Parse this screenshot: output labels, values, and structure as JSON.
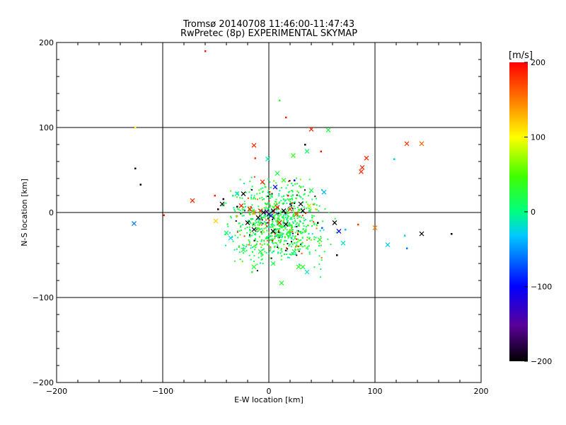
{
  "chart_data": {
    "type": "scatter",
    "title": "Tromsø 20140708 11:46:00-11:47:43",
    "subtitle": "RwPretec (8p) EXPERIMENTAL SKYMAP",
    "xlabel": "E-W location [km]",
    "ylabel": "N-S location [km]",
    "xlim": [
      -200,
      200
    ],
    "ylim": [
      -200,
      200
    ],
    "x_ticks": [
      "-200",
      "-100",
      "0",
      "100",
      "200"
    ],
    "y_ticks": [
      "-200",
      "-100",
      "0",
      "100",
      "200"
    ],
    "grid": true,
    "colorbar": {
      "label": "[m/s]",
      "range": [
        -200,
        200
      ],
      "ticks": [
        "-200",
        "-100",
        "0",
        "100",
        "200"
      ],
      "scale": "black-purple-blue-cyan-green-yellow-orange-red"
    },
    "points": [
      {
        "x": -60,
        "y": 190,
        "v": 190,
        "m": "dot"
      },
      {
        "x": 10,
        "y": 132,
        "v": 30,
        "m": "dot"
      },
      {
        "x": 16,
        "y": 112,
        "v": 190,
        "m": "dot"
      },
      {
        "x": -126,
        "y": 100,
        "v": 100,
        "m": "dot"
      },
      {
        "x": 40,
        "y": 98,
        "v": 185,
        "m": "cross"
      },
      {
        "x": 56,
        "y": 97,
        "v": 20,
        "m": "cross"
      },
      {
        "x": 34,
        "y": 80,
        "v": -200,
        "m": "dot"
      },
      {
        "x": -14,
        "y": 79,
        "v": 185,
        "m": "cross"
      },
      {
        "x": 130,
        "y": 81,
        "v": 180,
        "m": "cross"
      },
      {
        "x": 144,
        "y": 81,
        "v": 160,
        "m": "cross"
      },
      {
        "x": 36,
        "y": 72,
        "v": 10,
        "m": "cross"
      },
      {
        "x": 49,
        "y": 72,
        "v": 190,
        "m": "dot"
      },
      {
        "x": 23,
        "y": 67,
        "v": 40,
        "m": "cross"
      },
      {
        "x": 92,
        "y": 64,
        "v": 185,
        "m": "cross"
      },
      {
        "x": -1,
        "y": 63,
        "v": -10,
        "m": "cross"
      },
      {
        "x": -13,
        "y": 64,
        "v": 180,
        "m": "dot"
      },
      {
        "x": 118,
        "y": 63,
        "v": -30,
        "m": "dot"
      },
      {
        "x": 88,
        "y": 53,
        "v": 185,
        "m": "cross"
      },
      {
        "x": 87,
        "y": 48,
        "v": 185,
        "m": "cross"
      },
      {
        "x": -126,
        "y": 52,
        "v": -200,
        "m": "dot"
      },
      {
        "x": -121,
        "y": 33,
        "v": -200,
        "m": "dot"
      },
      {
        "x": -72,
        "y": 14,
        "v": 185,
        "m": "cross"
      },
      {
        "x": -51,
        "y": 20,
        "v": 185,
        "m": "dot"
      },
      {
        "x": -43,
        "y": 16,
        "v": -200,
        "m": "dot"
      },
      {
        "x": -44,
        "y": 10,
        "v": -200,
        "m": "cross"
      },
      {
        "x": -48,
        "y": 4,
        "v": -200,
        "m": "dot"
      },
      {
        "x": -30,
        "y": 7,
        "v": -200,
        "m": "dot"
      },
      {
        "x": -26,
        "y": 8,
        "v": 190,
        "m": "cross"
      },
      {
        "x": -18,
        "y": 4,
        "v": 185,
        "m": "cross"
      },
      {
        "x": -8,
        "y": 2,
        "v": 185,
        "m": "cross"
      },
      {
        "x": -5,
        "y": 0,
        "v": -180,
        "m": "cross"
      },
      {
        "x": -2,
        "y": 1,
        "v": -150,
        "m": "cross"
      },
      {
        "x": 0,
        "y": -2,
        "v": -170,
        "m": "cross"
      },
      {
        "x": 2,
        "y": -4,
        "v": -120,
        "m": "cross"
      },
      {
        "x": 4,
        "y": 2,
        "v": -190,
        "m": "cross"
      },
      {
        "x": -10,
        "y": -6,
        "v": -200,
        "m": "cross"
      },
      {
        "x": -14,
        "y": 0,
        "v": 150,
        "m": "cross"
      },
      {
        "x": 8,
        "y": 6,
        "v": 190,
        "m": "cross"
      },
      {
        "x": 14,
        "y": 2,
        "v": -200,
        "m": "cross"
      },
      {
        "x": 20,
        "y": 4,
        "v": 185,
        "m": "cross"
      },
      {
        "x": 26,
        "y": -2,
        "v": 170,
        "m": "cross"
      },
      {
        "x": 30,
        "y": 10,
        "v": -200,
        "m": "cross"
      },
      {
        "x": 32,
        "y": 2,
        "v": -200,
        "m": "cross"
      },
      {
        "x": -20,
        "y": -12,
        "v": -200,
        "m": "cross"
      },
      {
        "x": -14,
        "y": -20,
        "v": -200,
        "m": "cross"
      },
      {
        "x": 16,
        "y": -14,
        "v": -200,
        "m": "cross"
      },
      {
        "x": 10,
        "y": -12,
        "v": 185,
        "m": "cross"
      },
      {
        "x": 4,
        "y": -22,
        "v": -200,
        "m": "cross"
      },
      {
        "x": 46,
        "y": -12,
        "v": -200,
        "m": "dot"
      },
      {
        "x": 62,
        "y": -12,
        "v": -200,
        "m": "cross"
      },
      {
        "x": 66,
        "y": -22,
        "v": -100,
        "m": "cross"
      },
      {
        "x": 72,
        "y": -20,
        "v": -40,
        "m": "dot"
      },
      {
        "x": 84,
        "y": -14,
        "v": 180,
        "m": "dot"
      },
      {
        "x": 100,
        "y": -18,
        "v": 150,
        "m": "cross"
      },
      {
        "x": 144,
        "y": -25,
        "v": -200,
        "m": "cross"
      },
      {
        "x": 172,
        "y": -25,
        "v": -200,
        "m": "dot"
      },
      {
        "x": 128,
        "y": -27,
        "v": -30,
        "m": "dot"
      },
      {
        "x": 112,
        "y": -38,
        "v": -30,
        "m": "cross"
      },
      {
        "x": 130,
        "y": -42,
        "v": -60,
        "m": "dot"
      },
      {
        "x": -127,
        "y": -13,
        "v": -60,
        "m": "cross"
      },
      {
        "x": -99,
        "y": -3,
        "v": 190,
        "m": "dot"
      },
      {
        "x": 64,
        "y": -50,
        "v": -200,
        "m": "dot"
      },
      {
        "x": 70,
        "y": -36,
        "v": -20,
        "m": "cross"
      },
      {
        "x": 32,
        "y": -64,
        "v": 30,
        "m": "cross"
      },
      {
        "x": 12,
        "y": -83,
        "v": 30,
        "m": "cross"
      },
      {
        "x": -14,
        "y": -64,
        "v": 30,
        "m": "cross"
      },
      {
        "x": 28,
        "y": -64,
        "v": 40,
        "m": "cross"
      },
      {
        "x": 36,
        "y": -70,
        "v": -20,
        "m": "cross"
      },
      {
        "x": -16,
        "y": -70,
        "v": 30,
        "m": "dot"
      },
      {
        "x": 50,
        "y": -18,
        "v": -70,
        "m": "dot"
      },
      {
        "x": -50,
        "y": -10,
        "v": 120,
        "m": "cross"
      },
      {
        "x": -30,
        "y": -4,
        "v": 130,
        "m": "dot"
      },
      {
        "x": 18,
        "y": 20,
        "v": 190,
        "m": "dot"
      },
      {
        "x": 6,
        "y": 30,
        "v": -110,
        "m": "cross"
      },
      {
        "x": 24,
        "y": 38,
        "v": -110,
        "m": "dot"
      },
      {
        "x": 38,
        "y": 8,
        "v": 80,
        "m": "cross"
      },
      {
        "x": 44,
        "y": 4,
        "v": 120,
        "m": "dot"
      },
      {
        "x": 20,
        "y": 10,
        "v": -140,
        "m": "dot"
      },
      {
        "x": -6,
        "y": 36,
        "v": 185,
        "m": "cross"
      },
      {
        "x": -24,
        "y": 22,
        "v": -200,
        "m": "cross"
      },
      {
        "x": 14,
        "y": 38,
        "v": 40,
        "m": "cross"
      },
      {
        "x": 8,
        "y": 46,
        "v": 20,
        "m": "cross"
      },
      {
        "x": -30,
        "y": 22,
        "v": -20,
        "m": "cross"
      },
      {
        "x": 52,
        "y": 24,
        "v": -40,
        "m": "cross"
      },
      {
        "x": 40,
        "y": 26,
        "v": 20,
        "m": "cross"
      },
      {
        "x": -40,
        "y": -24,
        "v": 10,
        "m": "cross"
      },
      {
        "x": -24,
        "y": -44,
        "v": 20,
        "m": "cross"
      },
      {
        "x": 24,
        "y": -46,
        "v": 10,
        "m": "cross"
      },
      {
        "x": 48,
        "y": -32,
        "v": 30,
        "m": "cross"
      },
      {
        "x": -8,
        "y": -46,
        "v": 20,
        "m": "cross"
      },
      {
        "x": 4,
        "y": -60,
        "v": 20,
        "m": "cross"
      },
      {
        "x": -36,
        "y": -30,
        "v": -30,
        "m": "cross"
      },
      {
        "x": -34,
        "y": 20,
        "v": 20,
        "m": "dot"
      },
      {
        "x": 30,
        "y": 30,
        "v": 40,
        "m": "dot"
      }
    ]
  }
}
